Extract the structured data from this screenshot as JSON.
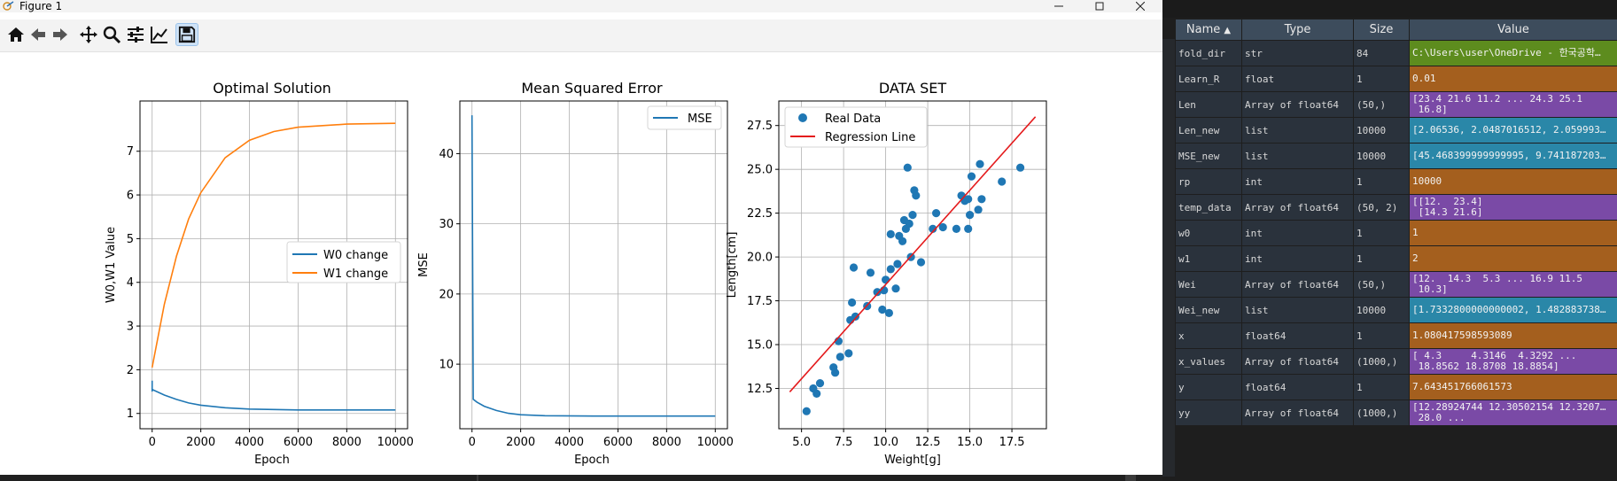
{
  "window": {
    "title": "Figure 1"
  },
  "toolbar": {
    "icons": [
      "home-icon",
      "back-arrow-icon",
      "forward-arrow-icon",
      "pan-icon",
      "zoom-icon",
      "configure-subplots-icon",
      "edit-axes-icon",
      "save-icon"
    ]
  },
  "colors": {
    "blue": "#1f77b4",
    "orange": "#ff7f0e",
    "red": "#e41a1c",
    "grid": "#b0b0b0"
  },
  "charts": {
    "c1": {
      "title": "Optimal Solution",
      "xlabel": "Epoch",
      "ylabel": "W0,W1 Value",
      "xticks": [
        "0",
        "2000",
        "4000",
        "6000",
        "8000",
        "10000"
      ],
      "yticks": [
        "1",
        "2",
        "3",
        "4",
        "5",
        "6",
        "7"
      ],
      "legend": [
        "W0 change",
        "W1 change"
      ]
    },
    "c2": {
      "title": "Mean Squared Error",
      "xlabel": "Epoch",
      "ylabel": "MSE",
      "xticks": [
        "0",
        "2000",
        "4000",
        "6000",
        "8000",
        "10000"
      ],
      "yticks": [
        "10",
        "20",
        "30",
        "40"
      ],
      "legend": [
        "MSE"
      ]
    },
    "c3": {
      "title": "DATA SET",
      "xlabel": "Weight[g]",
      "ylabel": "Length[cm]",
      "xticks": [
        "5.0",
        "7.5",
        "10.0",
        "12.5",
        "15.0",
        "17.5"
      ],
      "yticks": [
        "12.5",
        "15.0",
        "17.5",
        "20.0",
        "22.5",
        "25.0",
        "27.5"
      ],
      "legend": [
        "Real Data",
        "Regression Line"
      ]
    }
  },
  "chart_data": [
    {
      "type": "line",
      "title": "Optimal Solution",
      "xlabel": "Epoch",
      "ylabel": "W0,W1 Value",
      "xlim": [
        -500,
        10500
      ],
      "ylim": [
        0.65,
        8.15
      ],
      "grid": true,
      "legend_position": "center-right",
      "x": [
        0,
        500,
        1000,
        1500,
        2000,
        3000,
        4000,
        5000,
        6000,
        8000,
        10000
      ],
      "series": [
        {
          "name": "W0 change",
          "values": [
            1.55,
            1.42,
            1.32,
            1.24,
            1.19,
            1.13,
            1.1,
            1.09,
            1.08,
            1.08,
            1.08
          ]
        },
        {
          "name": "W1 change",
          "values": [
            2.05,
            3.5,
            4.6,
            5.45,
            6.05,
            6.85,
            7.25,
            7.45,
            7.55,
            7.62,
            7.64
          ]
        }
      ]
    },
    {
      "type": "line",
      "title": "Mean Squared Error",
      "xlabel": "Epoch",
      "ylabel": "MSE",
      "xlim": [
        -500,
        10500
      ],
      "ylim": [
        0.8,
        47.5
      ],
      "grid": true,
      "legend_position": "top-right",
      "x": [
        0,
        50,
        200,
        500,
        1000,
        1500,
        2000,
        3000,
        5000,
        10000
      ],
      "series": [
        {
          "name": "MSE",
          "values": [
            45.47,
            5.0,
            4.6,
            4.0,
            3.4,
            3.0,
            2.8,
            2.65,
            2.6,
            2.6
          ]
        }
      ]
    },
    {
      "type": "scatter",
      "title": "DATA SET",
      "xlabel": "Weight[g]",
      "ylabel": "Length[cm]",
      "xlim": [
        3.65,
        19.55
      ],
      "ylim": [
        10.2,
        28.9
      ],
      "grid": true,
      "legend_position": "top-left",
      "series": [
        {
          "name": "Real Data",
          "points": [
            [
              5.3,
              11.2
            ],
            [
              5.7,
              12.5
            ],
            [
              5.9,
              12.2
            ],
            [
              6.1,
              12.8
            ],
            [
              6.9,
              13.7
            ],
            [
              7.0,
              13.4
            ],
            [
              7.2,
              15.2
            ],
            [
              7.3,
              14.3
            ],
            [
              7.8,
              14.5
            ],
            [
              7.9,
              16.4
            ],
            [
              8.0,
              17.4
            ],
            [
              8.1,
              19.4
            ],
            [
              8.2,
              16.6
            ],
            [
              8.9,
              17.2
            ],
            [
              9.1,
              19.1
            ],
            [
              9.5,
              18.0
            ],
            [
              9.8,
              17.0
            ],
            [
              9.9,
              18.1
            ],
            [
              10.0,
              18.7
            ],
            [
              10.2,
              16.8
            ],
            [
              10.3,
              19.3
            ],
            [
              10.3,
              21.3
            ],
            [
              10.6,
              18.2
            ],
            [
              10.7,
              19.6
            ],
            [
              10.8,
              21.2
            ],
            [
              11.0,
              20.9
            ],
            [
              11.1,
              22.1
            ],
            [
              11.2,
              21.6
            ],
            [
              11.3,
              25.1
            ],
            [
              11.4,
              21.9
            ],
            [
              11.5,
              20.0
            ],
            [
              11.6,
              22.4
            ],
            [
              11.7,
              23.8
            ],
            [
              11.8,
              23.5
            ],
            [
              12.1,
              19.7
            ],
            [
              12.8,
              21.6
            ],
            [
              13.0,
              22.5
            ],
            [
              13.4,
              21.7
            ],
            [
              14.2,
              21.6
            ],
            [
              14.5,
              23.5
            ],
            [
              14.7,
              23.2
            ],
            [
              14.9,
              23.3
            ],
            [
              14.9,
              21.6
            ],
            [
              15.0,
              22.4
            ],
            [
              15.1,
              24.6
            ],
            [
              15.5,
              22.7
            ],
            [
              15.6,
              25.3
            ],
            [
              15.7,
              23.3
            ],
            [
              16.9,
              24.3
            ],
            [
              18.0,
              25.1
            ]
          ]
        },
        {
          "name": "Regression Line",
          "points": [
            [
              4.3,
              12.3
            ],
            [
              18.9,
              28.0
            ]
          ]
        }
      ]
    }
  ],
  "variables": {
    "headers": {
      "name": "Name",
      "type": "Type",
      "size": "Size",
      "value": "Value"
    },
    "rows": [
      {
        "name": "fold_dir",
        "type": "str",
        "size": "84",
        "value": "C:\\Users\\user\\OneDrive - 한국공학…",
        "color": "#5d8c1e"
      },
      {
        "name": "Learn_R",
        "type": "float",
        "size": "1",
        "value": "0.01",
        "color": "#a45f1e"
      },
      {
        "name": "Len",
        "type": "Array of float64",
        "size": "(50,)",
        "value": "[23.4 21.6 11.2 ... 24.3 25.1\n 16.8]",
        "color": "#7a4aa6"
      },
      {
        "name": "Len_new",
        "type": "list",
        "size": "10000",
        "value": "[2.06536, 2.0487016512, 2.059993…",
        "color": "#2a87a8"
      },
      {
        "name": "MSE_new",
        "type": "list",
        "size": "10000",
        "value": "[45.468399999999995, 9.741187203…",
        "color": "#2a87a8"
      },
      {
        "name": "rp",
        "type": "int",
        "size": "1",
        "value": "10000",
        "color": "#a45f1e"
      },
      {
        "name": "temp_data",
        "type": "Array of float64",
        "size": "(50, 2)",
        "value": "[[12.  23.4]\n [14.3 21.6]",
        "color": "#7a4aa6"
      },
      {
        "name": "w0",
        "type": "int",
        "size": "1",
        "value": "1",
        "color": "#a45f1e"
      },
      {
        "name": "w1",
        "type": "int",
        "size": "1",
        "value": "2",
        "color": "#a45f1e"
      },
      {
        "name": "Wei",
        "type": "Array of float64",
        "size": "(50,)",
        "value": "[12.  14.3  5.3 ... 16.9 11.5\n 10.3]",
        "color": "#7a4aa6"
      },
      {
        "name": "Wei_new",
        "type": "list",
        "size": "10000",
        "value": "[1.7332800000000002, 1.482883738…",
        "color": "#2a87a8"
      },
      {
        "name": "x",
        "type": "float64",
        "size": "1",
        "value": "1.080417598593089",
        "color": "#a45f1e"
      },
      {
        "name": "x_values",
        "type": "Array of float64",
        "size": "(1000,)",
        "value": "[ 4.3     4.3146  4.3292 ...\n 18.8562 18.8708 18.8854]",
        "color": "#7a4aa6"
      },
      {
        "name": "y",
        "type": "float64",
        "size": "1",
        "value": "7.643451766061573",
        "color": "#a45f1e"
      },
      {
        "name": "yy",
        "type": "Array of float64",
        "size": "(1000,)",
        "value": "[12.28924744 12.30502154 12.3207…\n 28.0 ...",
        "color": "#7a4aa6"
      }
    ]
  }
}
